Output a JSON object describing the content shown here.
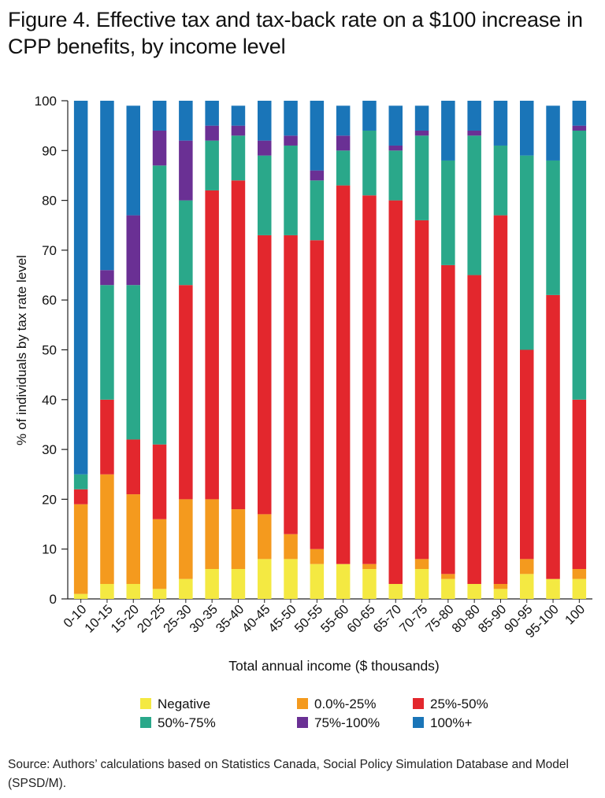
{
  "title": "Figure 4. Effective tax and tax-back rate on a $100 increase in CPP benefits, by income level",
  "source": "Source: Authors’ calculations based on Statistics Canada, Social Policy Simulation Database and Model (SPSD/M).",
  "chart_data": {
    "type": "bar",
    "stacked": true,
    "title": "Figure 4. Effective tax and tax-back rate on a $100 increase in CPP benefits, by income level",
    "xlabel": "Total annual income ($ thousands)",
    "ylabel": "% of  individuals by tax rate level",
    "ylim": [
      0,
      100
    ],
    "yticks": [
      0,
      10,
      20,
      30,
      40,
      50,
      60,
      70,
      80,
      90,
      100
    ],
    "grid": false,
    "legend_position": "bottom",
    "categories": [
      "0-10",
      "10-15",
      "15-20",
      "20-25",
      "25-30",
      "30-35",
      "35-40",
      "40-45",
      "45-50",
      "50-55",
      "55-60",
      "60-65",
      "65-70",
      "70-75",
      "75-80",
      "80-80",
      "85-90",
      "90-95",
      "95-100",
      "100"
    ],
    "series": [
      {
        "name": "Negative",
        "color": "#f4e942",
        "values": [
          1,
          3,
          3,
          2,
          4,
          6,
          6,
          8,
          8,
          7,
          7,
          6,
          3,
          6,
          4,
          3,
          2,
          5,
          4,
          4
        ]
      },
      {
        "name": "0.0%-25%",
        "color": "#f49a1e",
        "values": [
          18,
          22,
          18,
          14,
          16,
          14,
          12,
          9,
          5,
          3,
          0,
          1,
          0,
          2,
          1,
          0,
          1,
          3,
          0,
          2
        ]
      },
      {
        "name": "25%-50%",
        "color": "#e3272d",
        "values": [
          3,
          15,
          11,
          15,
          43,
          62,
          66,
          56,
          60,
          62,
          76,
          74,
          77,
          68,
          62,
          62,
          74,
          42,
          57,
          34
        ]
      },
      {
        "name": "50%-75%",
        "color": "#2aa88a",
        "values": [
          3,
          23,
          31,
          56,
          17,
          10,
          9,
          16,
          18,
          12,
          7,
          13,
          10,
          17,
          21,
          28,
          14,
          39,
          27,
          54
        ]
      },
      {
        "name": "75%-100%",
        "color": "#6a3094",
        "values": [
          0,
          3,
          14,
          7,
          12,
          3,
          2,
          3,
          2,
          2,
          3,
          0,
          1,
          1,
          0,
          1,
          0,
          0,
          0,
          1
        ]
      },
      {
        "name": "100%+",
        "color": "#1a75b8",
        "values": [
          75,
          34,
          22,
          6,
          8,
          5,
          4,
          8,
          7,
          14,
          6,
          6,
          8,
          5,
          12,
          6,
          9,
          11,
          11,
          5
        ]
      }
    ]
  }
}
